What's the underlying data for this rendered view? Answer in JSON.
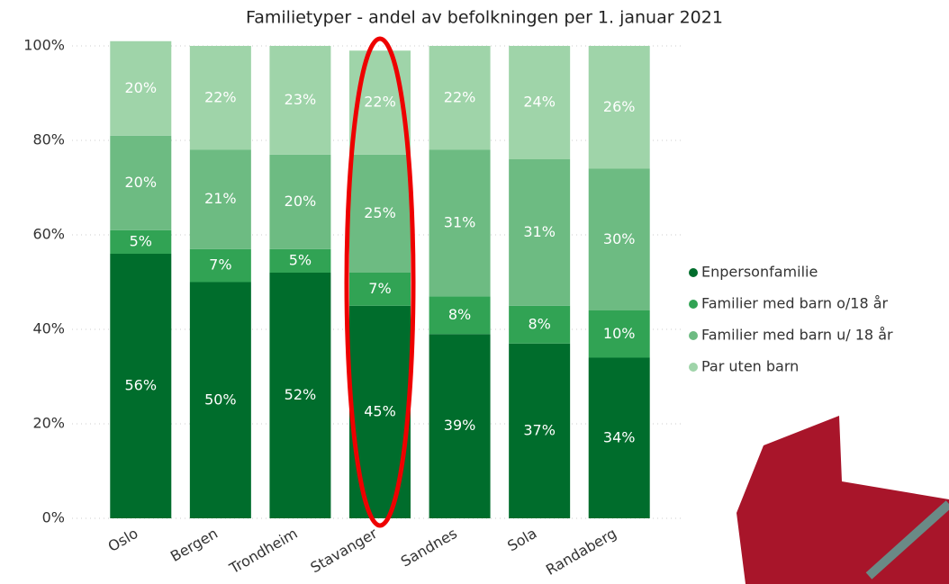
{
  "chart_data": {
    "type": "stacked_bar",
    "title": "Familietyper - andel av befolkningen per 1. januar 2021",
    "categories": [
      "Oslo",
      "Bergen",
      "Trondheim",
      "Stavanger",
      "Sandnes",
      "Sola",
      "Randaberg"
    ],
    "series": [
      {
        "name": "Enpersonfamilie",
        "color": "#006d2c",
        "values": [
          56,
          50,
          52,
          45,
          39,
          37,
          34
        ],
        "value_labels": [
          "56%",
          "50%",
          "52%",
          "45%",
          "39%",
          "37%",
          "34%"
        ]
      },
      {
        "name": "Familier med barn o/18 år",
        "color": "#31a354",
        "values": [
          5,
          7,
          5,
          7,
          8,
          8,
          10
        ],
        "value_labels": [
          "5%",
          "7%",
          "5%",
          "7%",
          "8%",
          "8%",
          "10%"
        ]
      },
      {
        "name": "Familier med barn u/ 18 år",
        "color": "#6dbb82",
        "values": [
          20,
          21,
          20,
          25,
          31,
          31,
          30
        ],
        "value_labels": [
          "20%",
          "21%",
          "20%",
          "25%",
          "31%",
          "31%",
          "30%"
        ]
      },
      {
        "name": "Par uten barn",
        "color": "#9fd4a9",
        "values": [
          20,
          22,
          23,
          22,
          22,
          24,
          26
        ],
        "value_labels": [
          "20%",
          "22%",
          "23%",
          "22%",
          "22%",
          "24%",
          "26%"
        ]
      }
    ],
    "ylim": [
      0,
      100
    ],
    "yticks": [
      {
        "value": 0,
        "label": "0%"
      },
      {
        "value": 20,
        "label": "20%"
      },
      {
        "value": 40,
        "label": "40%"
      },
      {
        "value": 60,
        "label": "60%"
      },
      {
        "value": 80,
        "label": "80%"
      },
      {
        "value": 100,
        "label": "100%"
      }
    ],
    "grid": true,
    "legend": "right"
  }
}
